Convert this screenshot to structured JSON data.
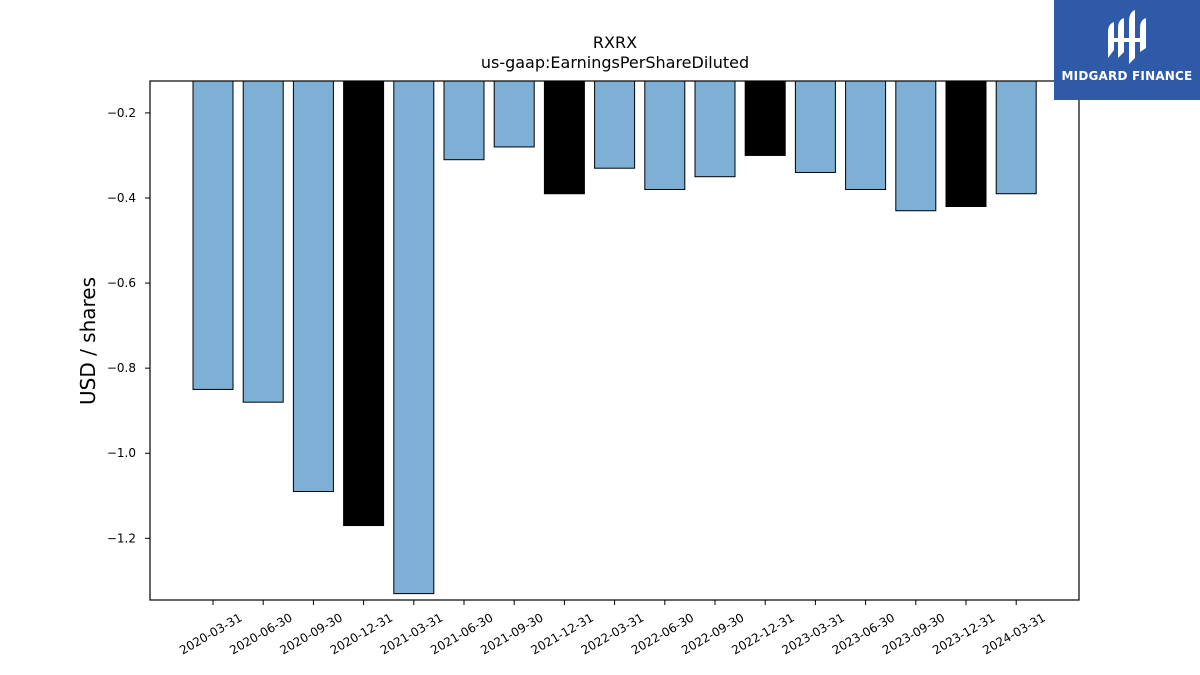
{
  "chart_data": {
    "type": "bar",
    "title": "RXRX",
    "subtitle": "us-gaap:EarningsPerShareDiluted",
    "xlabel": "",
    "ylabel": "USD / shares",
    "ylim": [
      -1.345,
      -0.125
    ],
    "yticks": [
      -0.2,
      -0.4,
      -0.6,
      -0.8,
      -1.0,
      -1.2
    ],
    "ytick_labels": [
      "−0.2",
      "−0.4",
      "−0.6",
      "−0.8",
      "−1.0",
      "−1.2"
    ],
    "categories": [
      "2020-03-31",
      "2020-06-30",
      "2020-09-30",
      "2020-12-31",
      "2021-03-31",
      "2021-06-30",
      "2021-09-30",
      "2021-12-31",
      "2022-03-31",
      "2022-06-30",
      "2022-09-30",
      "2022-12-31",
      "2023-03-31",
      "2023-06-30",
      "2023-09-30",
      "2023-12-31",
      "2024-03-31"
    ],
    "values": [
      -0.85,
      -0.88,
      -1.09,
      -1.17,
      -1.33,
      -0.31,
      -0.28,
      -0.39,
      -0.33,
      -0.38,
      -0.35,
      -0.3,
      -0.34,
      -0.38,
      -0.43,
      -0.42,
      -0.39
    ],
    "bar_colors": [
      "#7eafd4",
      "#7eafd4",
      "#7eafd4",
      "#000000",
      "#7eafd4",
      "#7eafd4",
      "#7eafd4",
      "#000000",
      "#7eafd4",
      "#7eafd4",
      "#7eafd4",
      "#000000",
      "#7eafd4",
      "#7eafd4",
      "#7eafd4",
      "#000000",
      "#7eafd4"
    ],
    "grid": false,
    "legend": "none"
  },
  "logo": {
    "text": "MIDGARD FINANCE",
    "bg_color": "#2f5aa8"
  }
}
